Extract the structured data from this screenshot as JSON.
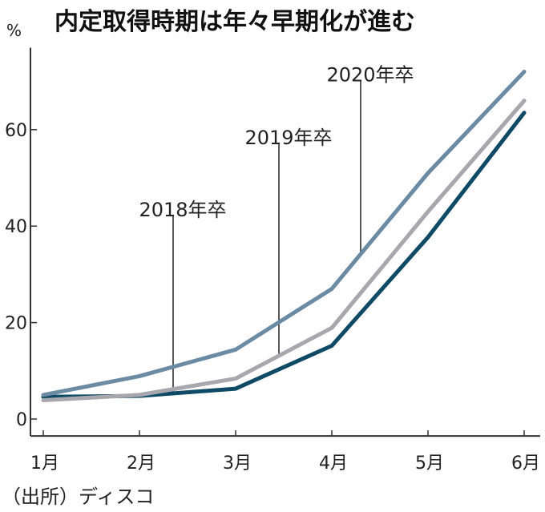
{
  "chart_data": {
    "type": "line",
    "title": "内定取得時期は年々早期化が進む",
    "ylabel": "%",
    "source": "（出所）ディスコ",
    "categories": [
      "1月",
      "2月",
      "3月",
      "4月",
      "5月",
      "6月"
    ],
    "yticks": [
      0,
      20,
      40,
      60
    ],
    "ylim": [
      -3.5,
      77
    ],
    "grid": false,
    "series": [
      {
        "name": "2018年卒",
        "color": "#0e4a66",
        "values": [
          4.6,
          4.8,
          6.3,
          15.2,
          37.7,
          63.5
        ]
      },
      {
        "name": "2019年卒",
        "color": "#a9a7ae",
        "values": [
          3.9,
          5.0,
          8.4,
          18.9,
          43.0,
          66.0
        ]
      },
      {
        "name": "2020年卒",
        "color": "#6b8aa3",
        "values": [
          5.0,
          8.9,
          14.4,
          27.0,
          51.0,
          72.0
        ]
      }
    ],
    "annotations": [
      {
        "text": "2018年卒",
        "series": 0,
        "x": 2.35,
        "label_y": 42
      },
      {
        "text": "2019年卒",
        "series": 1,
        "x": 3.45,
        "label_y": 57
      },
      {
        "text": "2020年卒",
        "series": 2,
        "x": 4.3,
        "label_y": 70
      }
    ]
  }
}
